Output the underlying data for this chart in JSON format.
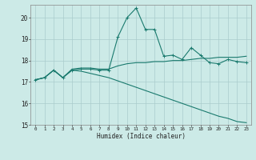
{
  "xlabel": "Humidex (Indice chaleur)",
  "background_color": "#cceae7",
  "grid_color": "#aacccc",
  "line_color": "#1a7a6e",
  "xlim": [
    -0.5,
    23.5
  ],
  "ylim": [
    15,
    20.6
  ],
  "yticks": [
    15,
    16,
    17,
    18,
    19,
    20
  ],
  "xticks": [
    0,
    1,
    2,
    3,
    4,
    5,
    6,
    7,
    8,
    9,
    10,
    11,
    12,
    13,
    14,
    15,
    16,
    17,
    18,
    19,
    20,
    21,
    22,
    23
  ],
  "line1_x": [
    0,
    1,
    2,
    3,
    4,
    5,
    6,
    7,
    8,
    9,
    10,
    11,
    12,
    13,
    14,
    15,
    16,
    17,
    18,
    19,
    20,
    21,
    22,
    23
  ],
  "line1_y": [
    17.1,
    17.2,
    17.55,
    17.2,
    17.55,
    17.6,
    17.6,
    17.55,
    17.55,
    19.1,
    20.0,
    20.45,
    19.45,
    19.45,
    18.2,
    18.25,
    18.05,
    18.6,
    18.25,
    17.9,
    17.85,
    18.05,
    17.95,
    17.9
  ],
  "line2_x": [
    0,
    1,
    2,
    3,
    4,
    5,
    6,
    7,
    8,
    9,
    10,
    11,
    12,
    13,
    14,
    15,
    16,
    17,
    18,
    19,
    20,
    21,
    22,
    23
  ],
  "line2_y": [
    17.1,
    17.2,
    17.55,
    17.2,
    17.6,
    17.65,
    17.65,
    17.6,
    17.6,
    17.75,
    17.85,
    17.9,
    17.9,
    17.95,
    17.95,
    18.0,
    18.0,
    18.05,
    18.1,
    18.1,
    18.15,
    18.15,
    18.15,
    18.2
  ],
  "line3_x": [
    0,
    1,
    2,
    3,
    4,
    5,
    6,
    7,
    8,
    9,
    10,
    11,
    12,
    13,
    14,
    15,
    16,
    17,
    18,
    19,
    20,
    21,
    22,
    23
  ],
  "line3_y": [
    17.1,
    17.2,
    17.55,
    17.2,
    17.55,
    17.5,
    17.4,
    17.3,
    17.2,
    17.05,
    16.9,
    16.75,
    16.6,
    16.45,
    16.3,
    16.15,
    16.0,
    15.85,
    15.7,
    15.55,
    15.4,
    15.3,
    15.15,
    15.1
  ]
}
